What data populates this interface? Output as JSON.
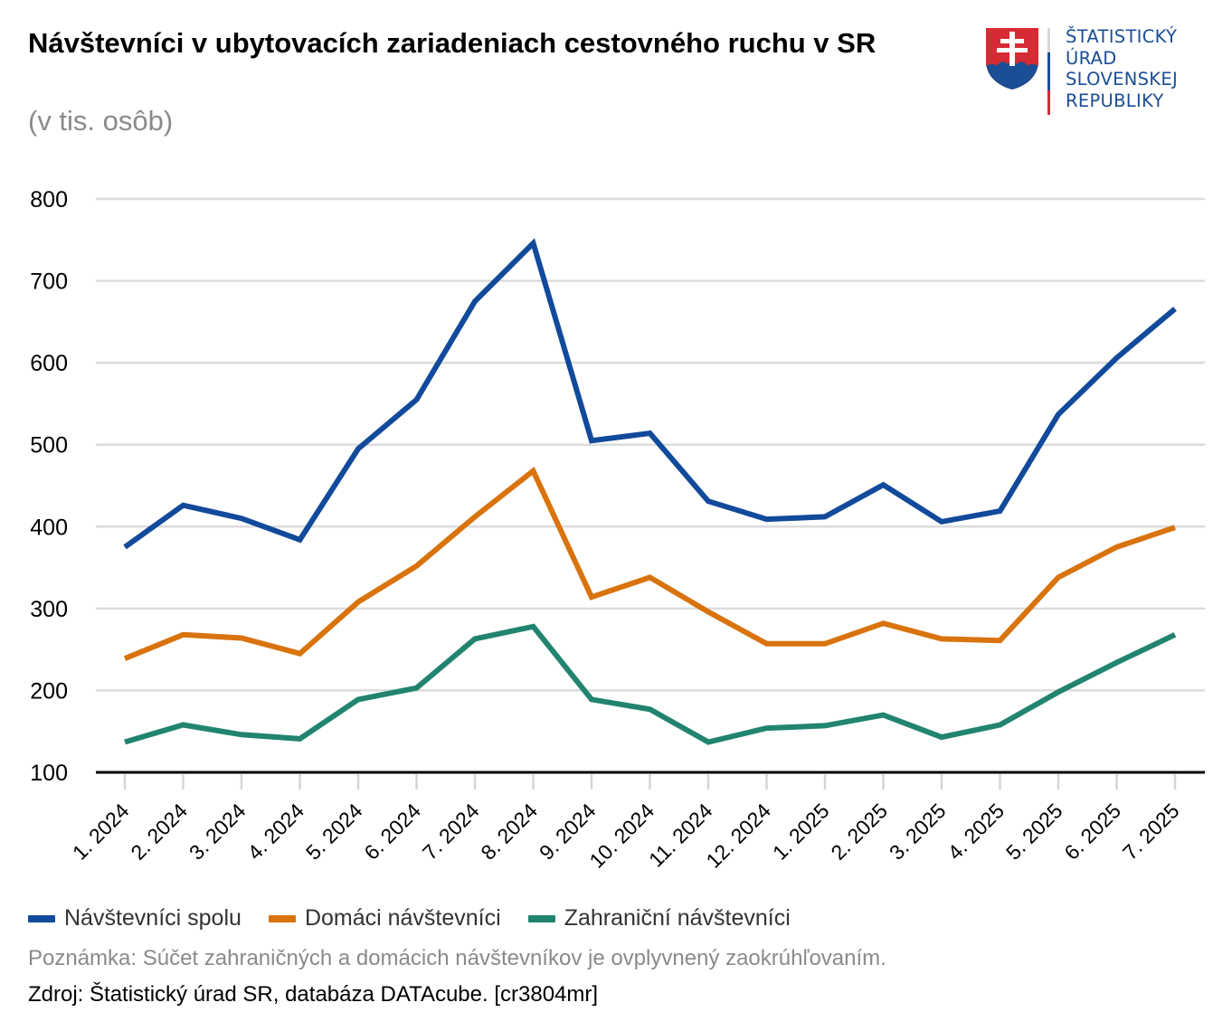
{
  "header": {
    "title": "Návštevníci v ubytovacích zariadeniach cestovného ruchu v SR",
    "subtitle": "(v tis. osôb)"
  },
  "logo": {
    "lines": [
      "ŠTATISTICKÝ",
      "ÚRAD",
      "SLOVENSKEJ",
      "REPUBLIKY"
    ],
    "icon": "slovak-coat-of-arms-icon",
    "colors": {
      "red": "#d52b34",
      "blue": "#1b4e94",
      "white": "#ffffff"
    }
  },
  "footer": {
    "note": "Poznámka: Súčet zahraničných a domácich návštevníkov je ovplyvnený zaokrúhľovaním.",
    "source": "Zdroj: Štatistický úrad SR, databáza DATAcube. [cr3804mr]"
  },
  "chart_data": {
    "type": "line",
    "title": "Návštevníci v ubytovacích zariadeniach cestovného ruchu v SR",
    "subtitle": "(v tis. osôb)",
    "xlabel": "",
    "ylabel": "",
    "ylim": [
      100,
      800
    ],
    "yticks": [
      100,
      200,
      300,
      400,
      500,
      600,
      700,
      800
    ],
    "grid": true,
    "legend_position": "bottom-left",
    "categories": [
      "1. 2024",
      "2. 2024",
      "3. 2024",
      "4. 2024",
      "5. 2024",
      "6. 2024",
      "7. 2024",
      "8. 2024",
      "9. 2024",
      "10. 2024",
      "11. 2024",
      "12. 2024",
      "1. 2025",
      "2. 2025",
      "3. 2025",
      "4. 2025",
      "5. 2025",
      "6. 2025",
      "7. 2025"
    ],
    "series": [
      {
        "name": "Návštevníci spolu",
        "color": "#124a9b",
        "values": [
          375,
          426,
          410,
          384,
          495,
          555,
          675,
          746,
          505,
          514,
          431,
          409,
          412,
          451,
          406,
          419,
          537,
          606,
          666
        ]
      },
      {
        "name": "Domáci návštevníci",
        "color": "#d9730d",
        "values": [
          239,
          268,
          264,
          245,
          308,
          352,
          412,
          468,
          314,
          338,
          296,
          257,
          257,
          282,
          263,
          261,
          338,
          375,
          399
        ]
      },
      {
        "name": "Zahraniční návštevníci",
        "color": "#218470",
        "values": [
          137,
          158,
          146,
          141,
          189,
          203,
          263,
          278,
          189,
          177,
          137,
          154,
          157,
          170,
          143,
          158,
          198,
          234,
          268
        ]
      }
    ]
  }
}
